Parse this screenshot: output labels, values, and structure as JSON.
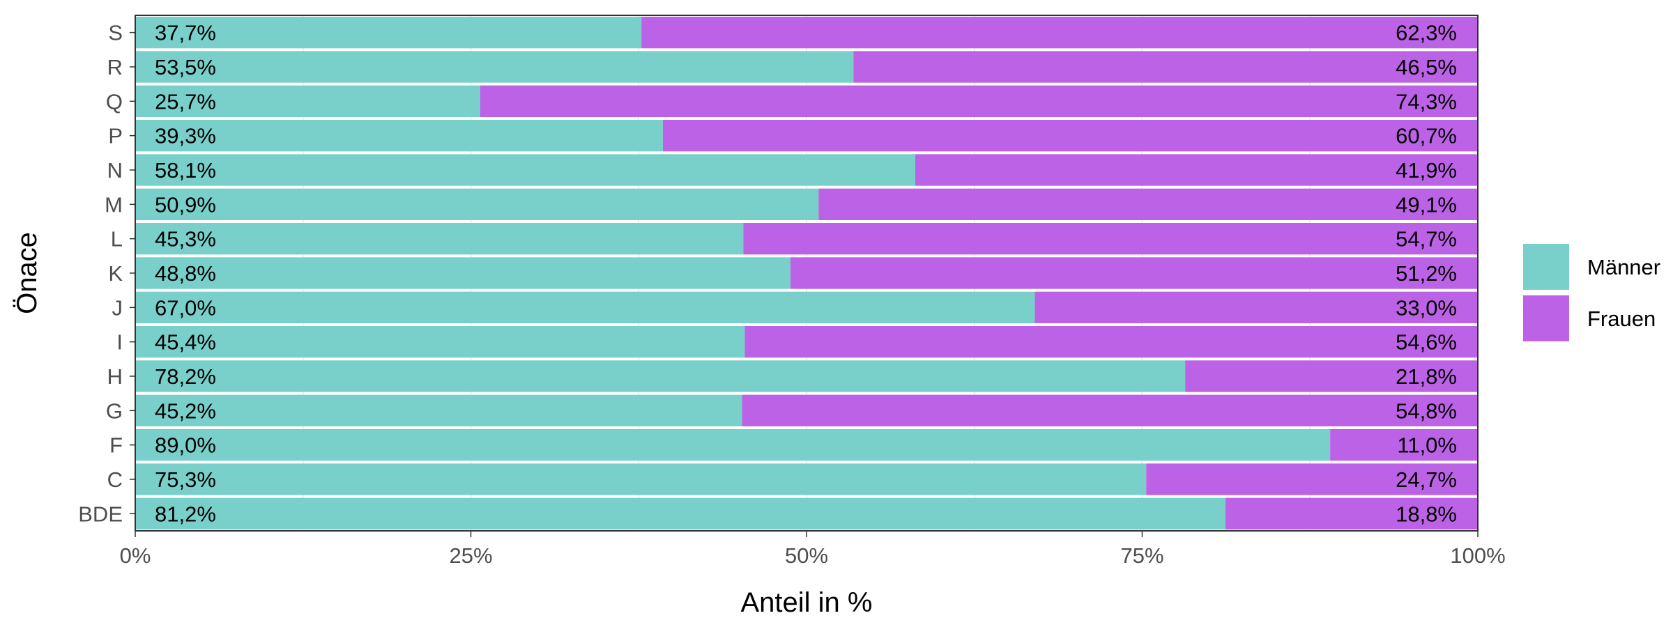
{
  "chart_data": {
    "type": "bar",
    "orientation": "horizontal",
    "stacked": true,
    "categories": [
      "S",
      "R",
      "Q",
      "P",
      "N",
      "M",
      "L",
      "K",
      "J",
      "I",
      "H",
      "G",
      "F",
      "C",
      "BDE"
    ],
    "series": [
      {
        "name": "Männer",
        "color": "#79D0CA",
        "values": [
          37.7,
          53.5,
          25.7,
          39.3,
          58.1,
          50.9,
          45.3,
          48.8,
          67.0,
          45.4,
          78.2,
          45.2,
          89.0,
          75.3,
          81.2
        ],
        "labels": [
          "37,7%",
          "53,5%",
          "25,7%",
          "39,3%",
          "58,1%",
          "50,9%",
          "45,3%",
          "48,8%",
          "67,0%",
          "45,4%",
          "78,2%",
          "45,2%",
          "89,0%",
          "75,3%",
          "81,2%"
        ]
      },
      {
        "name": "Frauen",
        "color": "#BC62E6",
        "values": [
          62.3,
          46.5,
          74.3,
          60.7,
          41.9,
          49.1,
          54.7,
          51.2,
          33.0,
          54.6,
          21.8,
          54.8,
          11.0,
          24.7,
          18.8
        ],
        "labels": [
          "62,3%",
          "46,5%",
          "74,3%",
          "60,7%",
          "41,9%",
          "49,1%",
          "54,7%",
          "51,2%",
          "33,0%",
          "54,6%",
          "21,8%",
          "54,8%",
          "11,0%",
          "24,7%",
          "18,8%"
        ]
      }
    ],
    "xlim": [
      0,
      100
    ],
    "xticks": [
      0,
      25,
      50,
      75,
      100
    ],
    "xtick_labels": [
      "0%",
      "25%",
      "50%",
      "75%",
      "100%"
    ],
    "xlabel": "Anteil in %",
    "ylabel": "Önace",
    "legend_position": "right",
    "grid": true
  }
}
